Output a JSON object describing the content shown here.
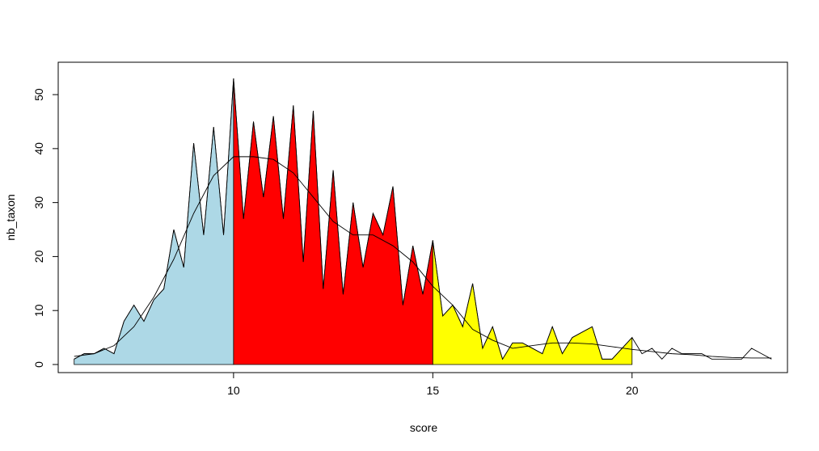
{
  "chart_data": {
    "type": "area",
    "xlabel": "score",
    "ylabel": "nb_taxon",
    "xlim": [
      5.6,
      23.9
    ],
    "ylim": [
      -1.5,
      56
    ],
    "x_ticks": [
      10,
      15,
      20
    ],
    "y_ticks": [
      0,
      10,
      20,
      30,
      40,
      50
    ],
    "grid": false,
    "legend": "none",
    "fill_regions": [
      {
        "from": 6.0,
        "to": 10.0,
        "color": "#add8e6"
      },
      {
        "from": 10.0,
        "to": 15.0,
        "color": "#ff0000"
      },
      {
        "from": 15.0,
        "to": 20.0,
        "color": "#ffff00"
      }
    ],
    "series": [
      {
        "x": [
          6.0,
          6.25,
          6.5,
          6.75,
          7.0,
          7.25,
          7.5,
          7.75,
          8.0,
          8.25,
          8.5,
          8.75,
          9.0,
          9.25,
          9.5,
          9.75,
          10.0,
          10.25,
          10.5,
          10.75,
          11.0,
          11.25,
          11.5,
          11.75,
          12.0,
          12.25,
          12.5,
          12.75,
          13.0,
          13.25,
          13.5,
          13.75,
          14.0,
          14.25,
          14.5,
          14.75,
          15.0,
          15.25,
          15.5,
          15.75,
          16.0,
          16.25,
          16.5,
          16.75,
          17.0,
          17.25,
          17.5,
          17.75,
          18.0,
          18.25,
          18.5,
          18.75,
          19.0,
          19.25,
          19.5,
          19.75,
          20.0,
          20.25,
          20.5,
          20.75,
          21.0,
          21.25,
          21.5,
          21.75,
          22.0,
          22.25,
          22.5,
          22.75,
          23.0,
          23.25,
          23.5
        ],
        "values": [
          1,
          2,
          2,
          3,
          2,
          8,
          11,
          8,
          12,
          14,
          25,
          18,
          41,
          24,
          44,
          24,
          53,
          27,
          45,
          31,
          46,
          27,
          48,
          19,
          47,
          14,
          36,
          13,
          30,
          18,
          28,
          24,
          33,
          11,
          22,
          13,
          23,
          9,
          11,
          7,
          15,
          3,
          7,
          1,
          4,
          4,
          3,
          2,
          7,
          2,
          5,
          6,
          7,
          1,
          1,
          3,
          5,
          2,
          3,
          1,
          3,
          2,
          2,
          2,
          1,
          1,
          1,
          1,
          3,
          2,
          1
        ]
      },
      {
        "x": [
          6.0,
          6.5,
          7.0,
          7.5,
          8.0,
          8.5,
          9.0,
          9.5,
          10.0,
          10.5,
          11.0,
          11.5,
          12.0,
          12.5,
          13.0,
          13.5,
          14.0,
          14.5,
          15.0,
          15.5,
          16.0,
          16.5,
          17.0,
          17.5,
          18.0,
          18.5,
          19.0,
          19.5,
          20.0,
          20.5,
          21.0,
          21.5,
          22.0,
          22.5,
          23.0,
          23.5
        ],
        "values": [
          1.5,
          2.0,
          3.5,
          7.0,
          12.5,
          19.5,
          28.0,
          35.0,
          38.5,
          38.5,
          38.0,
          35.5,
          31.0,
          26.5,
          24.0,
          24.0,
          22.0,
          19.0,
          14.5,
          11.0,
          6.5,
          4.5,
          3.0,
          3.5,
          4.0,
          4.0,
          3.8,
          3.3,
          2.8,
          2.4,
          2.0,
          1.8,
          1.5,
          1.3,
          1.2,
          1.2
        ]
      }
    ]
  }
}
